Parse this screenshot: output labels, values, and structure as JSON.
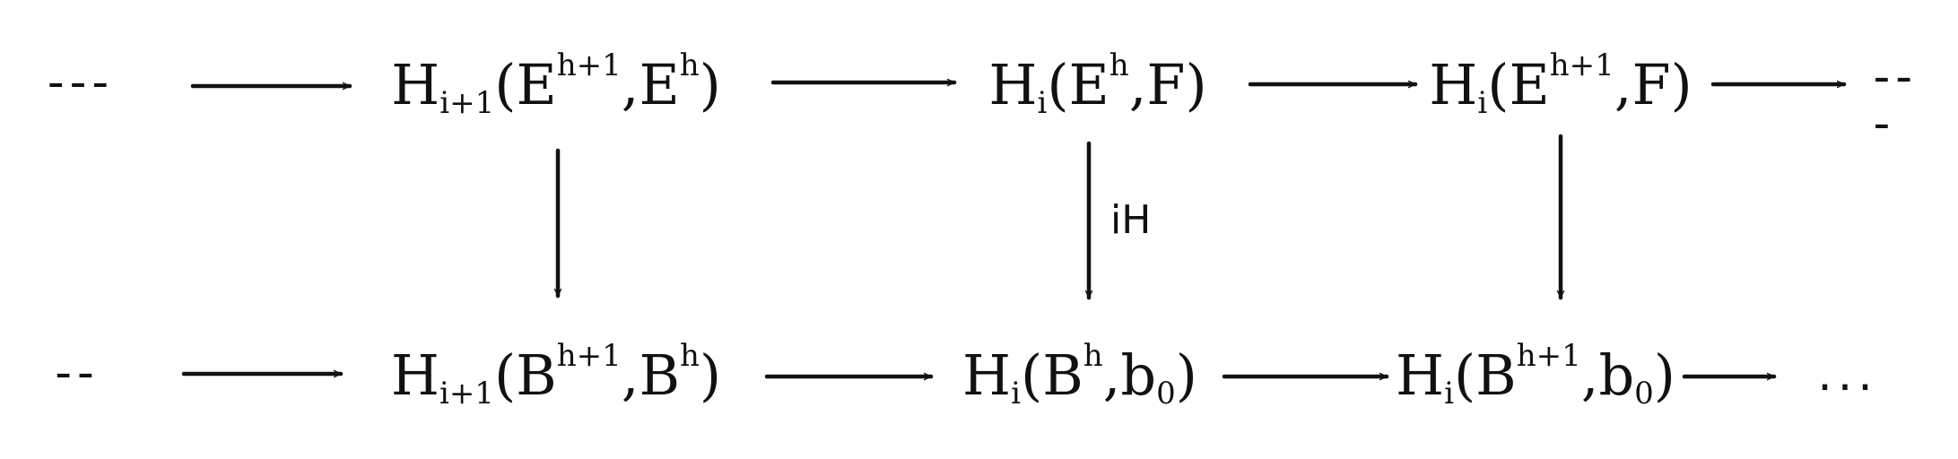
{
  "diagram": {
    "top_row": {
      "left_dots": "---",
      "n1": {
        "base": "H",
        "sub": "i+1",
        "open": "(",
        "a": "E",
        "a_sup": "h+1",
        "sep": ",",
        "b": "E",
        "b_sup": "h",
        "close": ")"
      },
      "n2": {
        "base": "H",
        "sub": "i",
        "open": "(",
        "a": "E",
        "a_sup": "h",
        "sep": ",",
        "b": "F",
        "close": ")"
      },
      "n3": {
        "base": "H",
        "sub": "i",
        "open": "(",
        "a": "E",
        "a_sup": "h+1",
        "sep": ",",
        "b": "F",
        "close": ")"
      },
      "right_dots": "---"
    },
    "bottom_row": {
      "left_dots": "--",
      "n1": {
        "base": "H",
        "sub": "i+1",
        "open": "(",
        "a": "B",
        "a_sup": "h+1",
        "sep": ",",
        "b": "B",
        "b_sup": "h",
        "close": ")"
      },
      "n2": {
        "base": "H",
        "sub": "i",
        "open": "(",
        "a": "B",
        "a_sup": "h",
        "sep": ",",
        "b": "b",
        "b_sub": "0",
        "close": ")"
      },
      "n3": {
        "base": "H",
        "sub": "i",
        "open": "(",
        "a": "B",
        "a_sup": "h+1",
        "sep": ",",
        "b": "b",
        "b_sub": "0",
        "close": ")"
      },
      "right_dots": "..."
    },
    "vertical_label": "iH"
  }
}
